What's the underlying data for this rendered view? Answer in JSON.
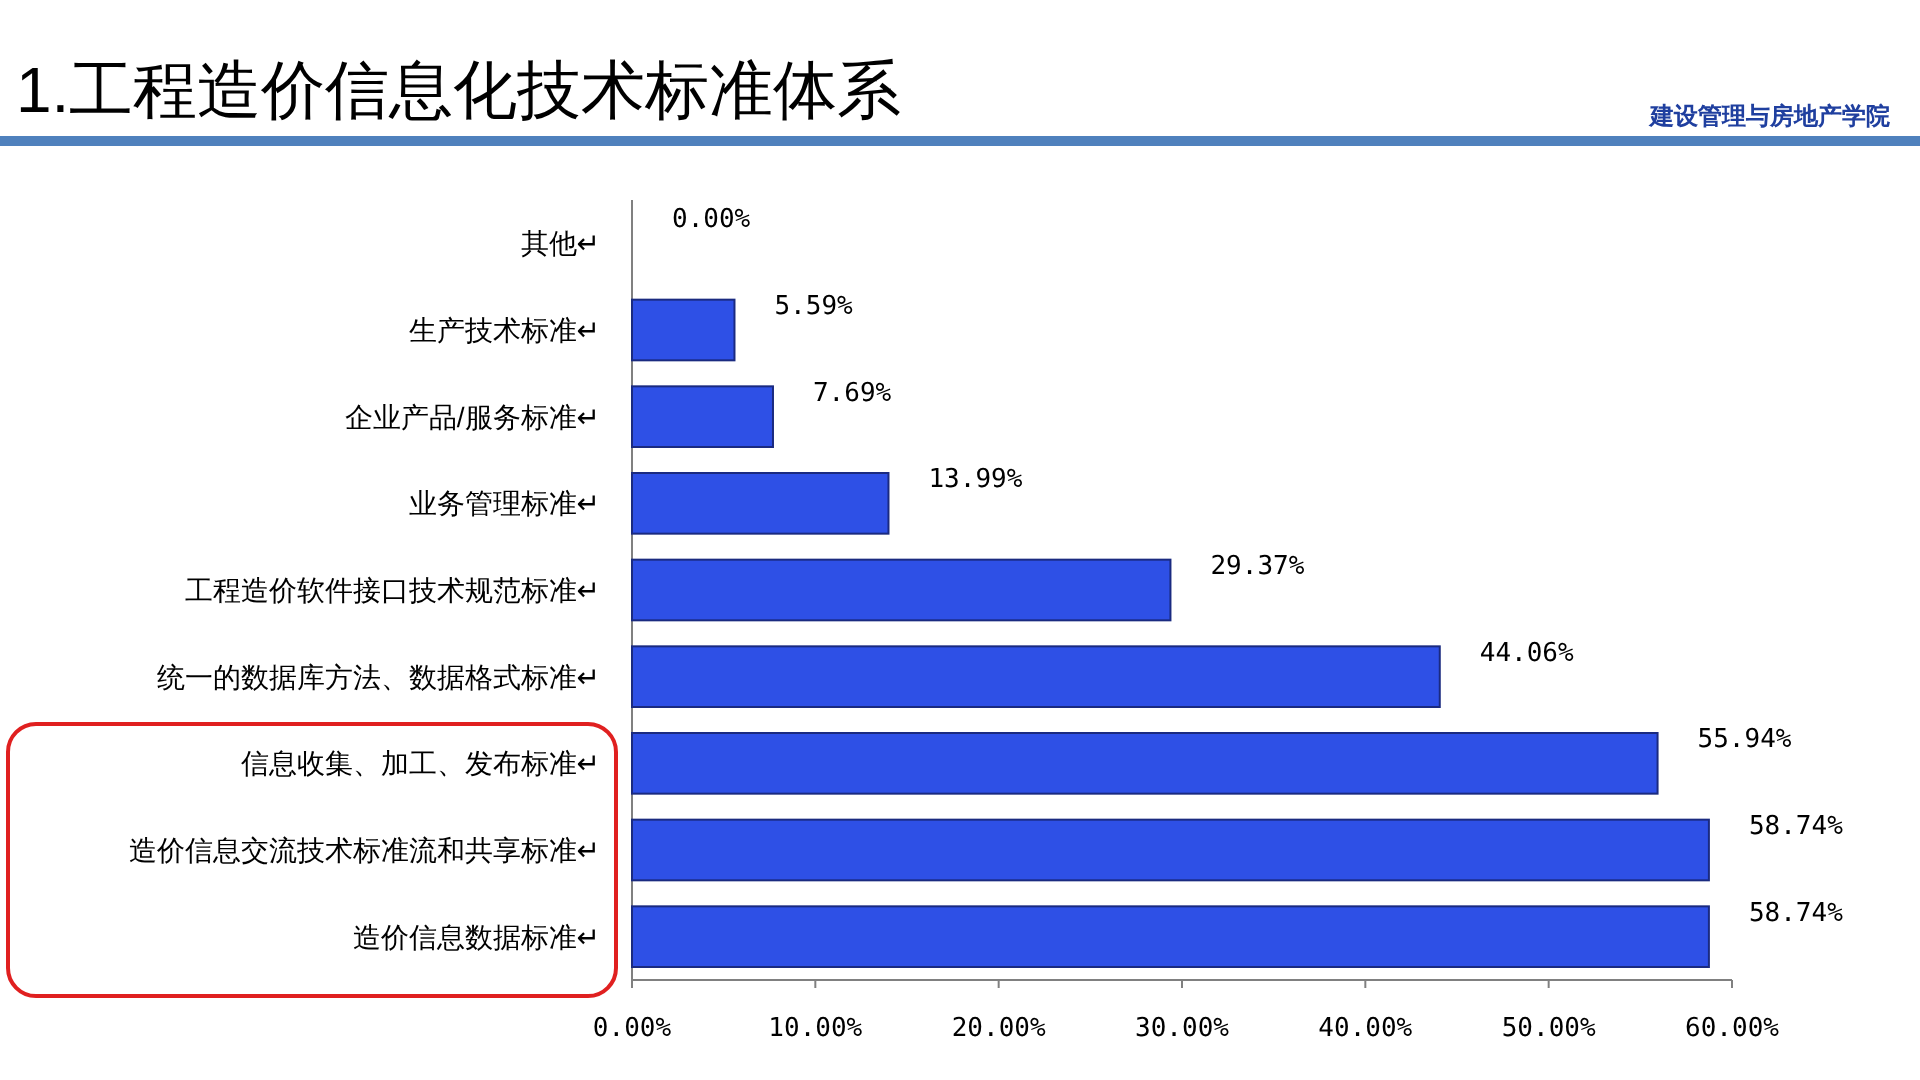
{
  "chart_data": {
    "type": "bar",
    "orientation": "horizontal",
    "title": "1.工程造价信息化技术标准体系",
    "categories": [
      "其他↵",
      "生产技术标准↵",
      "企业产品/服务标准↵",
      "业务管理标准↵",
      "工程造价软件接口技术规范标准↵",
      "统一的数据库方法、数据格式标准↵",
      "信息收集、加工、发布标准↵",
      "造价信息交流技术标准流和共享标准↵",
      "造价信息数据标准↵"
    ],
    "values": [
      0,
      5.59,
      7.69,
      13.99,
      29.37,
      44.06,
      55.94,
      58.74,
      58.74
    ],
    "value_labels": [
      "0.00%",
      "5.59%",
      "7.69%",
      "13.99%",
      "29.37%",
      "44.06%",
      "55.94%",
      "58.74%",
      "58.74%"
    ],
    "color": "#2e50e6",
    "xlim": [
      0,
      60
    ],
    "xticks": [
      {
        "value": 0,
        "label": "0.00%"
      },
      {
        "value": 10,
        "label": "10.00%"
      },
      {
        "value": 20,
        "label": "20.00%"
      },
      {
        "value": 30,
        "label": "30.00%"
      },
      {
        "value": 40,
        "label": "40.00%"
      },
      {
        "value": 50,
        "label": "50.00%"
      },
      {
        "value": 60,
        "label": "60.00%"
      }
    ],
    "annotations": [
      "建设管理与房地产学院"
    ]
  }
}
